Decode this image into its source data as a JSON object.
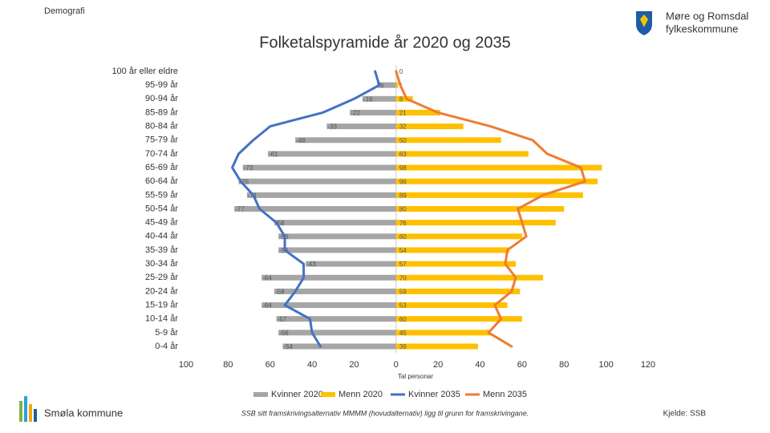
{
  "header": {
    "section": "Demografi",
    "org_line1": "Møre og Romsdal",
    "org_line2": "fylkeskommune"
  },
  "footer": {
    "municipality": "Smøla kommune",
    "note": "SSB sitt framskrivingsalternativ MMMM (hovudalternativ) ligg til grunn for framskrivingane.",
    "source": "Kjelde: SSB"
  },
  "chart_data": {
    "type": "pyramid",
    "title": "Folketalspyramide år 2020 og 2035",
    "x_label": "Tal personar",
    "categories": [
      "100 år eller eldre",
      "95-99 år",
      "90-94 år",
      "85-89 år",
      "80-84 år",
      "75-79 år",
      "70-74 år",
      "65-69 år",
      "60-64 år",
      "55-59 år",
      "50-54 år",
      "45-49 år",
      "40-44 år",
      "35-39 år",
      "30-34 år",
      "25-29 år",
      "20-24 år",
      "15-19 år",
      "10-14 år",
      "5-9 år",
      "0-4 år"
    ],
    "series": [
      {
        "name": "Kvinner 2020",
        "kind": "bar",
        "color": "#a5a5a5",
        "values": [
          null,
          -9,
          -16,
          -22,
          -33,
          -48,
          -61,
          -73,
          -75,
          -71,
          -77,
          -58,
          -56,
          -56,
          -43,
          -64,
          -58,
          -64,
          -57,
          -56,
          -54
        ]
      },
      {
        "name": "Menn 2020",
        "kind": "bar",
        "color": "#ffc000",
        "values": [
          0,
          1,
          8,
          21,
          32,
          50,
          63,
          98,
          96,
          89,
          80,
          76,
          60,
          54,
          57,
          70,
          59,
          53,
          60,
          45,
          39
        ]
      },
      {
        "name": "Kvinner 2035",
        "kind": "line",
        "color": "#4472c4",
        "values": [
          -10,
          -8,
          -20,
          -35,
          -60,
          -68,
          -75,
          -78,
          -74,
          -68,
          -65,
          -57,
          -53,
          -53,
          -44,
          -44,
          -48,
          -53,
          -41,
          -40,
          -36
        ]
      },
      {
        "name": "Menn 2035",
        "kind": "line",
        "color": "#ed7d31",
        "values": [
          0,
          2,
          5,
          20,
          45,
          65,
          72,
          88,
          90,
          70,
          58,
          60,
          62,
          53,
          52,
          57,
          55,
          47,
          50,
          44,
          55
        ]
      }
    ],
    "xlim": [
      -100,
      120
    ],
    "xticks": [
      {
        "value": -100,
        "label": "100"
      },
      {
        "value": -80,
        "label": "80"
      },
      {
        "value": -60,
        "label": "60"
      },
      {
        "value": -40,
        "label": "40"
      },
      {
        "value": -20,
        "label": "20"
      },
      0,
      20,
      40,
      60,
      80,
      100,
      120
    ]
  }
}
